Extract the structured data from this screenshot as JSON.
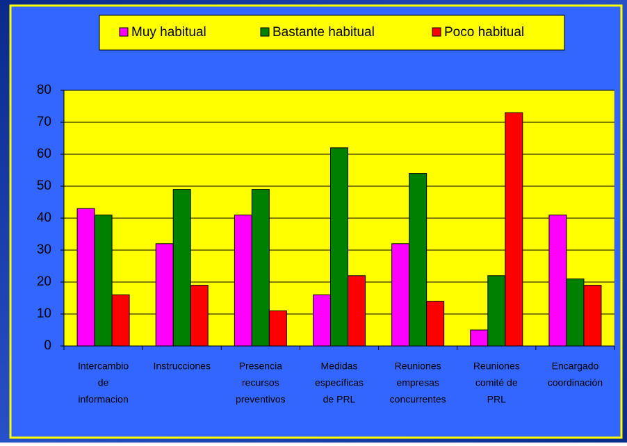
{
  "chart_data": {
    "type": "bar",
    "categories": [
      [
        "Intercambio",
        "de",
        "informacion"
      ],
      [
        "Instrucciones"
      ],
      [
        "Presencia",
        "recursos",
        "preventivos"
      ],
      [
        "Medidas",
        "específicas",
        "de PRL"
      ],
      [
        "Reuniones",
        "empresas",
        "concurrentes"
      ],
      [
        "Reuniones",
        "comité de",
        "PRL"
      ],
      [
        "Encargado",
        "coordinación"
      ]
    ],
    "series": [
      {
        "name": "Muy habitual",
        "color": "#ff00ff",
        "values": [
          43,
          32,
          41,
          16,
          32,
          5,
          41
        ]
      },
      {
        "name": "Bastante habitual",
        "color": "#008000",
        "values": [
          41,
          49,
          49,
          62,
          54,
          22,
          21
        ]
      },
      {
        "name": "Poco habitual",
        "color": "#ff0000",
        "values": [
          16,
          19,
          11,
          22,
          14,
          73,
          19
        ]
      }
    ],
    "ylim": [
      0,
      80
    ],
    "yticks": [
      0,
      10,
      20,
      30,
      40,
      50,
      60,
      70,
      80
    ],
    "grid": true
  }
}
